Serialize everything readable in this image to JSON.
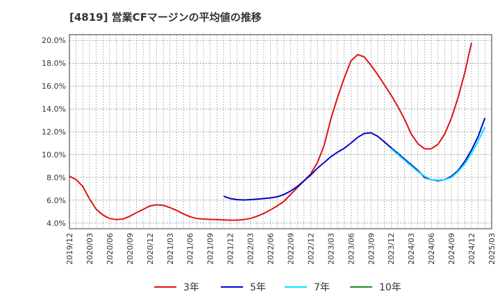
{
  "chart_data": {
    "type": "line",
    "title": "[4819]  営業CFマージンの平均値の推移",
    "ylim": [
      3.5,
      20.5
    ],
    "yticks": [
      "4.0%",
      "6.0%",
      "8.0%",
      "10.0%",
      "12.0%",
      "14.0%",
      "16.0%",
      "18.0%",
      "20.0%"
    ],
    "ytick_values": [
      4,
      6,
      8,
      10,
      12,
      14,
      16,
      18,
      20
    ],
    "xticks": [
      "2019/12",
      "2020/03",
      "2020/06",
      "2020/09",
      "2020/12",
      "2021/03",
      "2021/06",
      "2021/09",
      "2021/12",
      "2022/03",
      "2022/06",
      "2022/09",
      "2022/12",
      "2023/03",
      "2023/06",
      "2023/09",
      "2023/12",
      "2024/03",
      "2024/06",
      "2024/09",
      "2024/12",
      "2025/03"
    ],
    "grid": true,
    "legend_position": "bottom",
    "series": [
      {
        "name": "3年",
        "color": "#dd1111",
        "start": "2019/12",
        "values": [
          8.1,
          7.8,
          7.2,
          6.1,
          5.2,
          4.7,
          4.4,
          4.3,
          4.35,
          4.6,
          4.9,
          5.2,
          5.5,
          5.6,
          5.55,
          5.35,
          5.1,
          4.8,
          4.55,
          4.4,
          4.35,
          4.32,
          4.3,
          4.28,
          4.25,
          4.25,
          4.3,
          4.4,
          4.6,
          4.85,
          5.15,
          5.5,
          5.9,
          6.5,
          7.1,
          7.7,
          8.3,
          9.3,
          10.8,
          13.1,
          15.0,
          16.7,
          18.2,
          18.75,
          18.55,
          17.8,
          17.0,
          16.1,
          15.2,
          14.2,
          13.1,
          11.8,
          10.95,
          10.5,
          10.5,
          10.9,
          11.8,
          13.2,
          15.0,
          17.2,
          19.8
        ]
      },
      {
        "name": "5年",
        "color": "#0000cc",
        "start": "2021/11",
        "values": [
          6.35,
          6.15,
          6.05,
          6.02,
          6.05,
          6.1,
          6.15,
          6.2,
          6.3,
          6.5,
          6.8,
          7.2,
          7.7,
          8.2,
          8.8,
          9.3,
          9.8,
          10.2,
          10.55,
          11.0,
          11.5,
          11.85,
          11.9,
          11.6,
          11.1,
          10.6,
          10.1,
          9.6,
          9.1,
          8.6,
          8.0,
          7.8,
          7.7,
          7.8,
          8.1,
          8.6,
          9.4,
          10.4,
          11.6,
          13.2
        ]
      },
      {
        "name": "7年",
        "color": "#00e5ff",
        "start": "2023/12",
        "values": [
          10.5,
          10.0,
          9.5,
          9.0,
          8.5,
          8.1,
          7.8,
          7.75,
          7.8,
          8.0,
          8.5,
          9.2,
          10.1,
          11.2,
          12.4
        ]
      },
      {
        "name": "10年",
        "color": "#228822",
        "start": "2019/12",
        "values": []
      }
    ]
  }
}
